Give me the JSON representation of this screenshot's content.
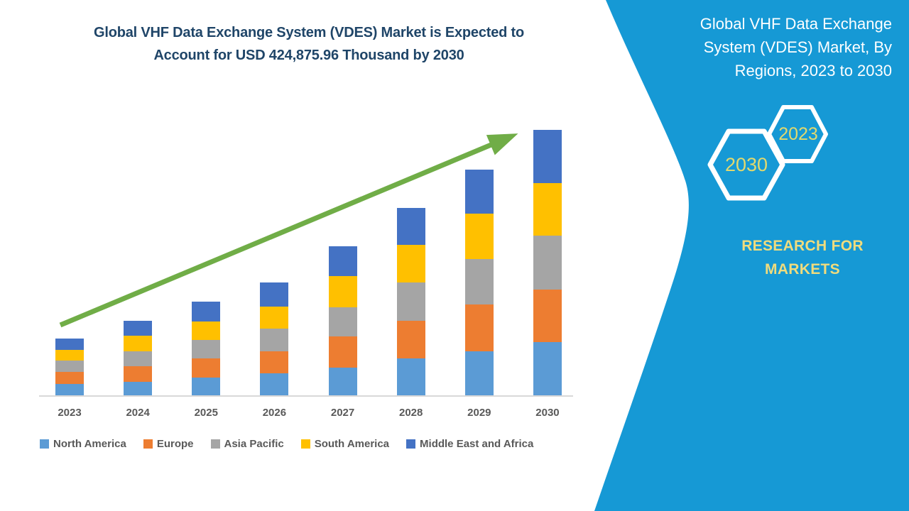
{
  "main_title": {
    "line1": "Global VHF Data Exchange System (VDES) Market is Expected to",
    "line2": "Account for USD 424,875.96 Thousand by 2030"
  },
  "side_panel": {
    "title_lines": [
      "Global VHF Data Exchange",
      "System (VDES) Market, By",
      "Regions, 2023 to 2030"
    ],
    "hexagons": [
      {
        "label": "2030"
      },
      {
        "label": "2023"
      }
    ],
    "brand_lines": [
      "RESEARCH FOR",
      "MARKETS"
    ]
  },
  "colors": {
    "panel_blue": "#1699D5",
    "title_blue": "#1F4568",
    "hexagon_label_yellow": "#E2D96E",
    "brand_yellow": "#F0DC7D",
    "arrow_green": "#70AD47",
    "axis_text_gray": "#595959",
    "axis_line_gray": "#D9D9D9"
  },
  "chart_data": {
    "type": "bar",
    "stacked": true,
    "title": "Global VHF Data Exchange System (VDES) Market is Expected to Account for USD 424,875.96 Thousand by 2030",
    "unit": "USD Thousand",
    "categories": [
      "2023",
      "2024",
      "2025",
      "2026",
      "2027",
      "2028",
      "2029",
      "2030"
    ],
    "series": [
      {
        "name": "North America",
        "color": "#5B9BD5",
        "values": [
          18176,
          21584,
          28400,
          35216,
          44304,
          59072,
          70432,
          85200
        ]
      },
      {
        "name": "Europe",
        "color": "#ED7D31",
        "values": [
          19312,
          24992,
          30672,
          35216,
          49984,
          60208,
          74976,
          84064
        ]
      },
      {
        "name": "Asia Pacific",
        "color": "#A5A5A5",
        "values": [
          18176,
          23856,
          29536,
          36352,
          46576,
          61344,
          72704,
          86336
        ]
      },
      {
        "name": "South America",
        "color": "#FFC000",
        "values": [
          17040,
          24992,
          29536,
          35216,
          49984,
          60208,
          72704,
          84064
        ]
      },
      {
        "name": "Middle East and Africa",
        "color": "#4472C4",
        "values": [
          18176,
          23856,
          31808,
          38624,
          47712,
          59072,
          70432,
          85212
        ]
      }
    ],
    "totals_estimated": [
      90880,
      119280,
      149952,
      180624,
      238560,
      299904,
      361248,
      424876
    ],
    "final_year_total_label": "USD 424,875.96 Thousand",
    "legend_position": "bottom",
    "gridlines": false,
    "y_axis_labels": false,
    "trend_arrow": {
      "direction": "up-right",
      "color": "#70AD47"
    }
  }
}
